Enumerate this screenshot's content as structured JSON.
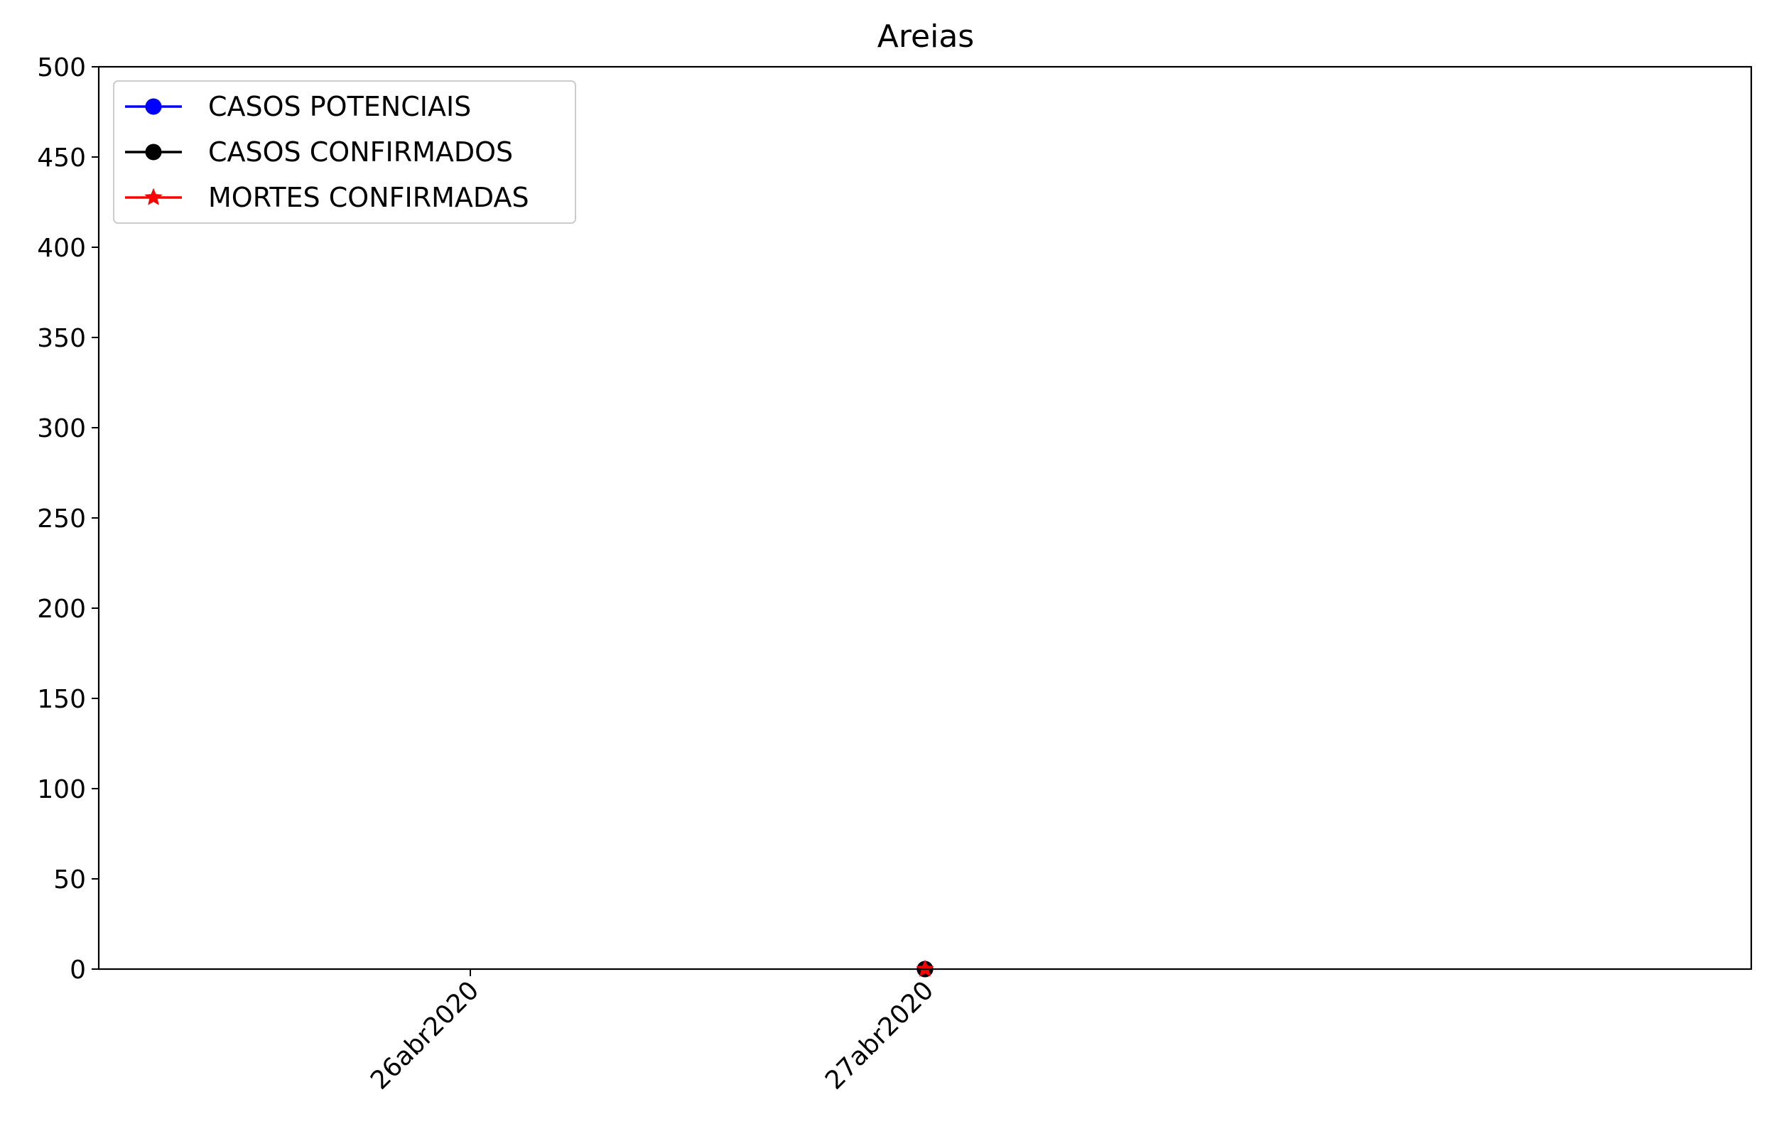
{
  "chart_data": {
    "type": "line",
    "title": "Areias",
    "xlabel": "",
    "ylabel": "",
    "categories": [
      "26abr2020",
      "27abr2020"
    ],
    "ylim": [
      0,
      500
    ],
    "yticks": [
      0,
      50,
      100,
      150,
      200,
      250,
      300,
      350,
      400,
      450,
      500
    ],
    "grid": false,
    "legend_position": "top-left",
    "series": [
      {
        "name": "CASOS POTENCIAIS",
        "color": "#0000ff",
        "marker": "circle",
        "points": [
          {
            "x": "27abr2020",
            "y": 0
          }
        ]
      },
      {
        "name": "CASOS CONFIRMADOS",
        "color": "#000000",
        "marker": "circle",
        "points": [
          {
            "x": "27abr2020",
            "y": 0
          }
        ]
      },
      {
        "name": "MORTES CONFIRMADAS",
        "color": "#ff0000",
        "marker": "star",
        "points": [
          {
            "x": "27abr2020",
            "y": 0
          }
        ]
      }
    ]
  }
}
